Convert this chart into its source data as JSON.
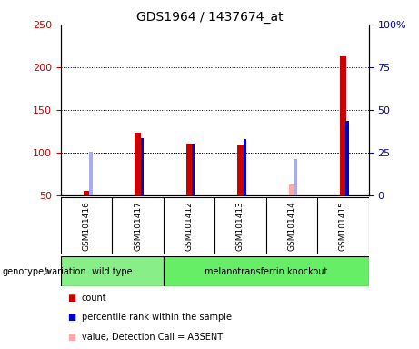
{
  "title": "GDS1964 / 1437674_at",
  "samples": [
    "GSM101416",
    "GSM101417",
    "GSM101412",
    "GSM101413",
    "GSM101414",
    "GSM101415"
  ],
  "count_values": [
    55,
    123,
    111,
    109,
    null,
    213
  ],
  "count_absent": [
    null,
    null,
    null,
    null,
    63,
    null
  ],
  "rank_values": [
    null,
    117,
    111,
    116,
    null,
    137
  ],
  "rank_absent": [
    101,
    null,
    null,
    null,
    93,
    null
  ],
  "ylim_left": [
    50,
    250
  ],
  "ylim_right": [
    0,
    100
  ],
  "yticks_left": [
    50,
    100,
    150,
    200,
    250
  ],
  "yticks_right": [
    0,
    25,
    50,
    75,
    100
  ],
  "ylabel_left_color": "#cc0000",
  "ylabel_right_color": "#0000cc",
  "grid_values": [
    100,
    150,
    200
  ],
  "groups": [
    {
      "label": "wild type",
      "indices": [
        0,
        1
      ],
      "color": "#88ee88"
    },
    {
      "label": "melanotransferrin knockout",
      "indices": [
        2,
        3,
        4,
        5
      ],
      "color": "#66ee66"
    }
  ],
  "genotype_label": "genotype/variation",
  "legend": [
    {
      "color": "#cc0000",
      "label": "count"
    },
    {
      "color": "#0000cc",
      "label": "percentile rank within the sample"
    },
    {
      "color": "#ffaaaa",
      "label": "value, Detection Call = ABSENT"
    },
    {
      "color": "#aaaaee",
      "label": "rank, Detection Call = ABSENT"
    }
  ],
  "red_bar_width": 0.12,
  "blue_bar_width": 0.06,
  "background_color": "#ffffff",
  "plot_bg_color": "#ffffff",
  "xticklabels_area_color": "#cccccc"
}
